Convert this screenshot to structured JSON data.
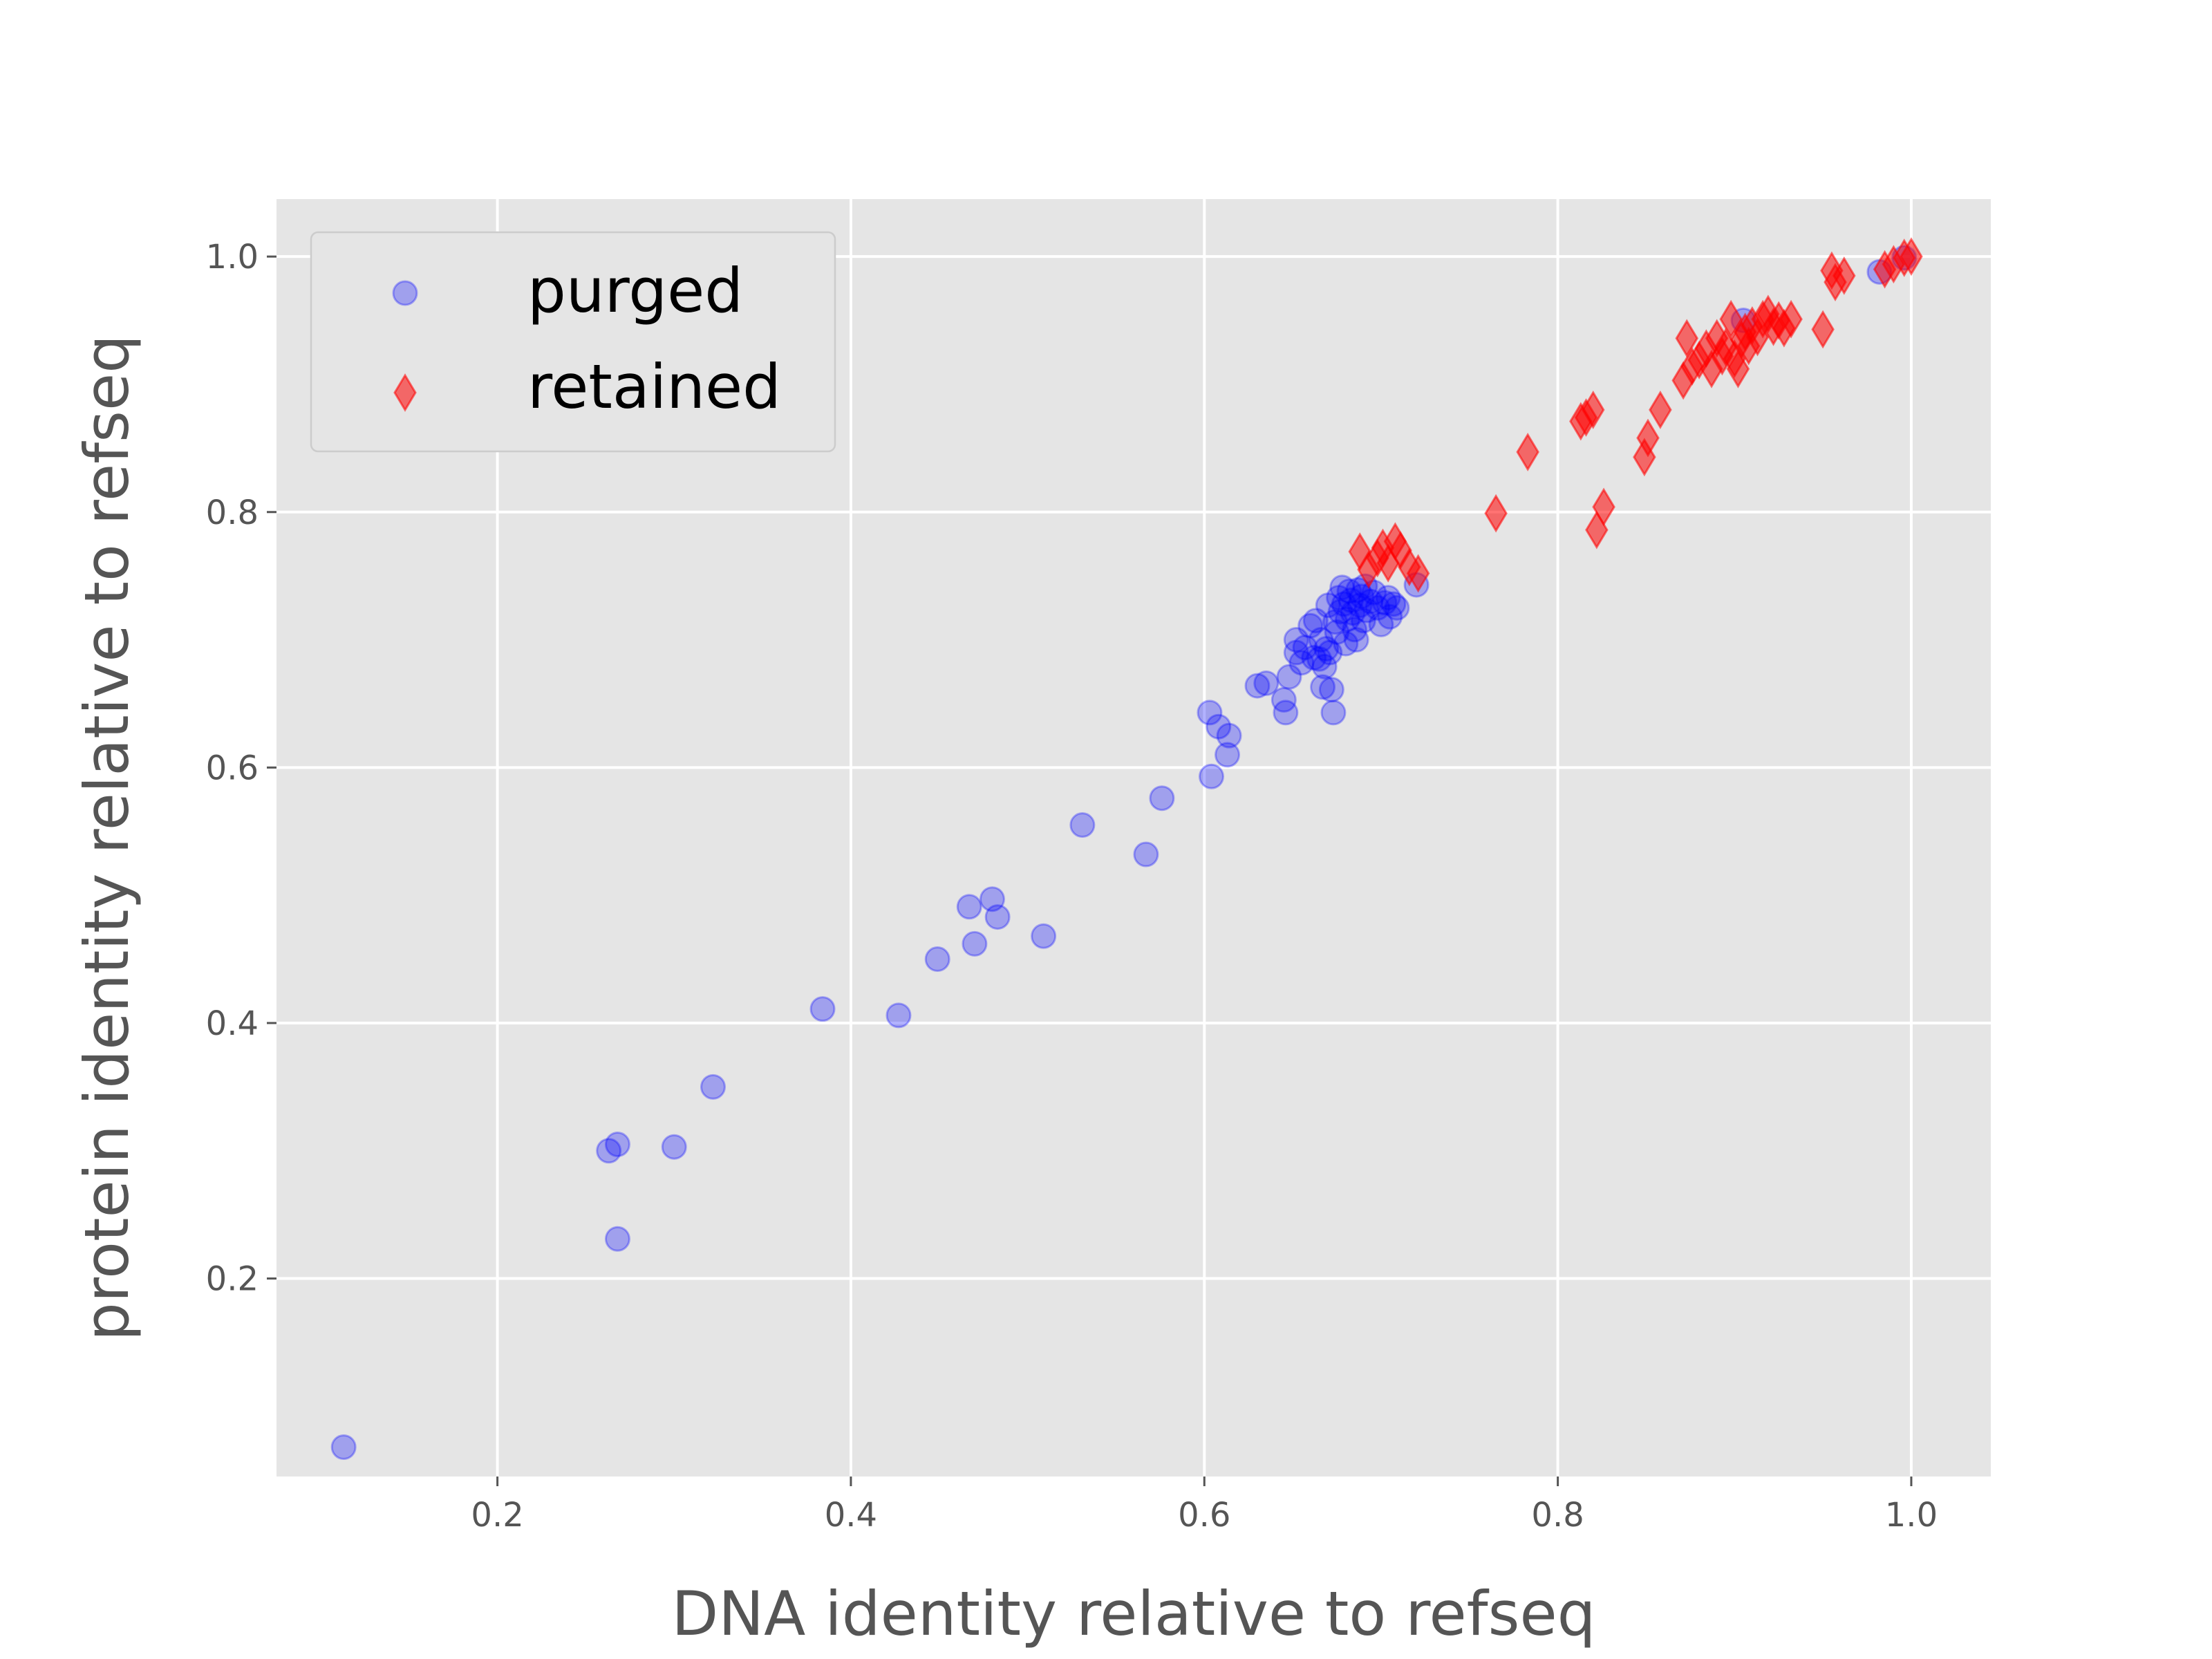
{
  "chart_data": {
    "type": "scatter",
    "title": "",
    "xlabel": "DNA identity relative to refseq",
    "ylabel": "protein identity relative to refseq",
    "xlim": [
      0.075,
      1.045
    ],
    "ylim": [
      0.045,
      1.045
    ],
    "x_ticks": [
      0.2,
      0.4,
      0.6,
      0.8,
      1.0
    ],
    "y_ticks": [
      0.2,
      0.4,
      0.6,
      0.8,
      1.0
    ],
    "x_tick_labels": [
      "0.2",
      "0.4",
      "0.6",
      "0.8",
      "1.0"
    ],
    "y_tick_labels": [
      "0.2",
      "0.4",
      "0.6",
      "0.8",
      "1.0"
    ],
    "grid": true,
    "legend_position": "upper-left",
    "series": [
      {
        "name": "purged",
        "marker": "circle",
        "color": "#0000ff",
        "points": [
          [
            0.113,
            0.068
          ],
          [
            0.263,
            0.3
          ],
          [
            0.268,
            0.305
          ],
          [
            0.268,
            0.231
          ],
          [
            0.3,
            0.303
          ],
          [
            0.322,
            0.35
          ],
          [
            0.384,
            0.411
          ],
          [
            0.427,
            0.406
          ],
          [
            0.449,
            0.45
          ],
          [
            0.467,
            0.491
          ],
          [
            0.47,
            0.462
          ],
          [
            0.48,
            0.497
          ],
          [
            0.483,
            0.483
          ],
          [
            0.509,
            0.468
          ],
          [
            0.531,
            0.555
          ],
          [
            0.567,
            0.532
          ],
          [
            0.576,
            0.576
          ],
          [
            0.603,
            0.643
          ],
          [
            0.604,
            0.593
          ],
          [
            0.608,
            0.632
          ],
          [
            0.613,
            0.61
          ],
          [
            0.614,
            0.625
          ],
          [
            0.63,
            0.664
          ],
          [
            0.635,
            0.666
          ],
          [
            0.645,
            0.653
          ],
          [
            0.646,
            0.643
          ],
          [
            0.648,
            0.671
          ],
          [
            0.652,
            0.69
          ],
          [
            0.652,
            0.7
          ],
          [
            0.655,
            0.682
          ],
          [
            0.657,
            0.694
          ],
          [
            0.66,
            0.711
          ],
          [
            0.662,
            0.686
          ],
          [
            0.663,
            0.715
          ],
          [
            0.665,
            0.685
          ],
          [
            0.666,
            0.7
          ],
          [
            0.667,
            0.663
          ],
          [
            0.668,
            0.679
          ],
          [
            0.669,
            0.693
          ],
          [
            0.67,
            0.727
          ],
          [
            0.671,
            0.69
          ],
          [
            0.672,
            0.661
          ],
          [
            0.673,
            0.643
          ],
          [
            0.674,
            0.714
          ],
          [
            0.675,
            0.706
          ],
          [
            0.676,
            0.733
          ],
          [
            0.677,
            0.722
          ],
          [
            0.678,
            0.741
          ],
          [
            0.679,
            0.728
          ],
          [
            0.68,
            0.697
          ],
          [
            0.681,
            0.716
          ],
          [
            0.682,
            0.738
          ],
          [
            0.683,
            0.731
          ],
          [
            0.684,
            0.721
          ],
          [
            0.685,
            0.708
          ],
          [
            0.686,
            0.7
          ],
          [
            0.687,
            0.739
          ],
          [
            0.688,
            0.727
          ],
          [
            0.689,
            0.734
          ],
          [
            0.69,
            0.715
          ],
          [
            0.691,
            0.742
          ],
          [
            0.692,
            0.723
          ],
          [
            0.694,
            0.73
          ],
          [
            0.696,
            0.737
          ],
          [
            0.698,
            0.725
          ],
          [
            0.7,
            0.712
          ],
          [
            0.702,
            0.729
          ],
          [
            0.704,
            0.733
          ],
          [
            0.705,
            0.718
          ],
          [
            0.707,
            0.728
          ],
          [
            0.709,
            0.725
          ],
          [
            0.72,
            0.743
          ],
          [
            0.905,
            0.95
          ],
          [
            0.982,
            0.988
          ],
          [
            0.996,
            0.999
          ]
        ]
      },
      {
        "name": "retained",
        "marker": "diamond",
        "color": "#ff0000",
        "points": [
          [
            0.688,
            0.769
          ],
          [
            0.693,
            0.755
          ],
          [
            0.698,
            0.764
          ],
          [
            0.701,
            0.772
          ],
          [
            0.704,
            0.76
          ],
          [
            0.708,
            0.777
          ],
          [
            0.711,
            0.77
          ],
          [
            0.716,
            0.757
          ],
          [
            0.721,
            0.752
          ],
          [
            0.765,
            0.799
          ],
          [
            0.783,
            0.847
          ],
          [
            0.813,
            0.871
          ],
          [
            0.816,
            0.874
          ],
          [
            0.82,
            0.88
          ],
          [
            0.822,
            0.786
          ],
          [
            0.826,
            0.804
          ],
          [
            0.849,
            0.843
          ],
          [
            0.851,
            0.858
          ],
          [
            0.858,
            0.88
          ],
          [
            0.871,
            0.903
          ],
          [
            0.873,
            0.936
          ],
          [
            0.876,
            0.914
          ],
          [
            0.88,
            0.919
          ],
          [
            0.884,
            0.928
          ],
          [
            0.887,
            0.912
          ],
          [
            0.89,
            0.936
          ],
          [
            0.893,
            0.922
          ],
          [
            0.895,
            0.929
          ],
          [
            0.898,
            0.951
          ],
          [
            0.9,
            0.92
          ],
          [
            0.902,
            0.912
          ],
          [
            0.904,
            0.935
          ],
          [
            0.906,
            0.941
          ],
          [
            0.908,
            0.93
          ],
          [
            0.91,
            0.946
          ],
          [
            0.913,
            0.937
          ],
          [
            0.916,
            0.951
          ],
          [
            0.919,
            0.955
          ],
          [
            0.922,
            0.945
          ],
          [
            0.925,
            0.95
          ],
          [
            0.928,
            0.944
          ],
          [
            0.932,
            0.951
          ],
          [
            0.95,
            0.943
          ],
          [
            0.955,
            0.989
          ],
          [
            0.957,
            0.98
          ],
          [
            0.962,
            0.985
          ],
          [
            0.985,
            0.99
          ],
          [
            0.99,
            0.994
          ],
          [
            0.996,
            0.999
          ],
          [
            1.0,
            1.0
          ]
        ]
      }
    ]
  }
}
